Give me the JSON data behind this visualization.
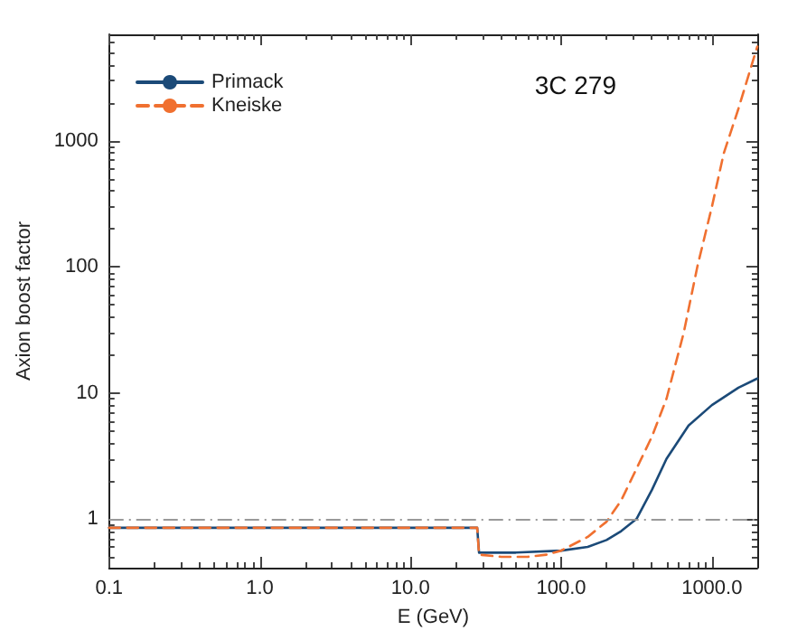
{
  "chart_data": {
    "type": "line",
    "xlabel": "E (GeV)",
    "ylabel": "Axion boost factor",
    "annotations": [
      "3C 279"
    ],
    "log": "xy",
    "grid": false,
    "legend": "top left",
    "marker": "none",
    "xlim": [
      0.1,
      2000
    ],
    "xticks": [
      {
        "value": 0.1,
        "label": "0.1"
      },
      {
        "value": 1,
        "label": "1.0"
      },
      {
        "value": 10,
        "label": "10.0"
      },
      {
        "value": 100,
        "label": "100.0"
      },
      {
        "value": 1000,
        "label": "1000.0"
      }
    ],
    "ylim": [
      0.41,
      7000
    ],
    "yticks": [
      1,
      10,
      100,
      1000
    ],
    "ref_lines": [
      {
        "axis": "y",
        "value": 1,
        "color": "#999999",
        "line_style": "dashdot"
      }
    ],
    "series": [
      {
        "name": "Primack",
        "color": "#1b4a78",
        "line_style": "solid",
        "x": [
          0.1,
          27.7,
          28.5,
          50,
          100,
          150,
          200,
          250,
          316,
          400,
          500,
          700,
          1000,
          1500,
          2000
        ],
        "values": [
          0.85,
          0.85,
          0.54,
          0.54,
          0.56,
          0.6,
          0.68,
          0.8,
          1.0,
          1.7,
          3.0,
          5.5,
          8,
          11,
          13
        ]
      },
      {
        "name": "Kneiske",
        "color": "#f07030",
        "line_style": "dashed",
        "x": [
          0.1,
          27.7,
          28.5,
          40,
          60,
          80,
          100,
          150,
          200,
          250,
          300,
          400,
          500,
          650,
          800,
          1000,
          1200,
          1500,
          2000
        ],
        "values": [
          0.85,
          0.85,
          0.52,
          0.5,
          0.5,
          0.52,
          0.56,
          0.72,
          0.95,
          1.4,
          2.2,
          4.5,
          9,
          30,
          100,
          300,
          800,
          1800,
          5600
        ]
      }
    ]
  }
}
